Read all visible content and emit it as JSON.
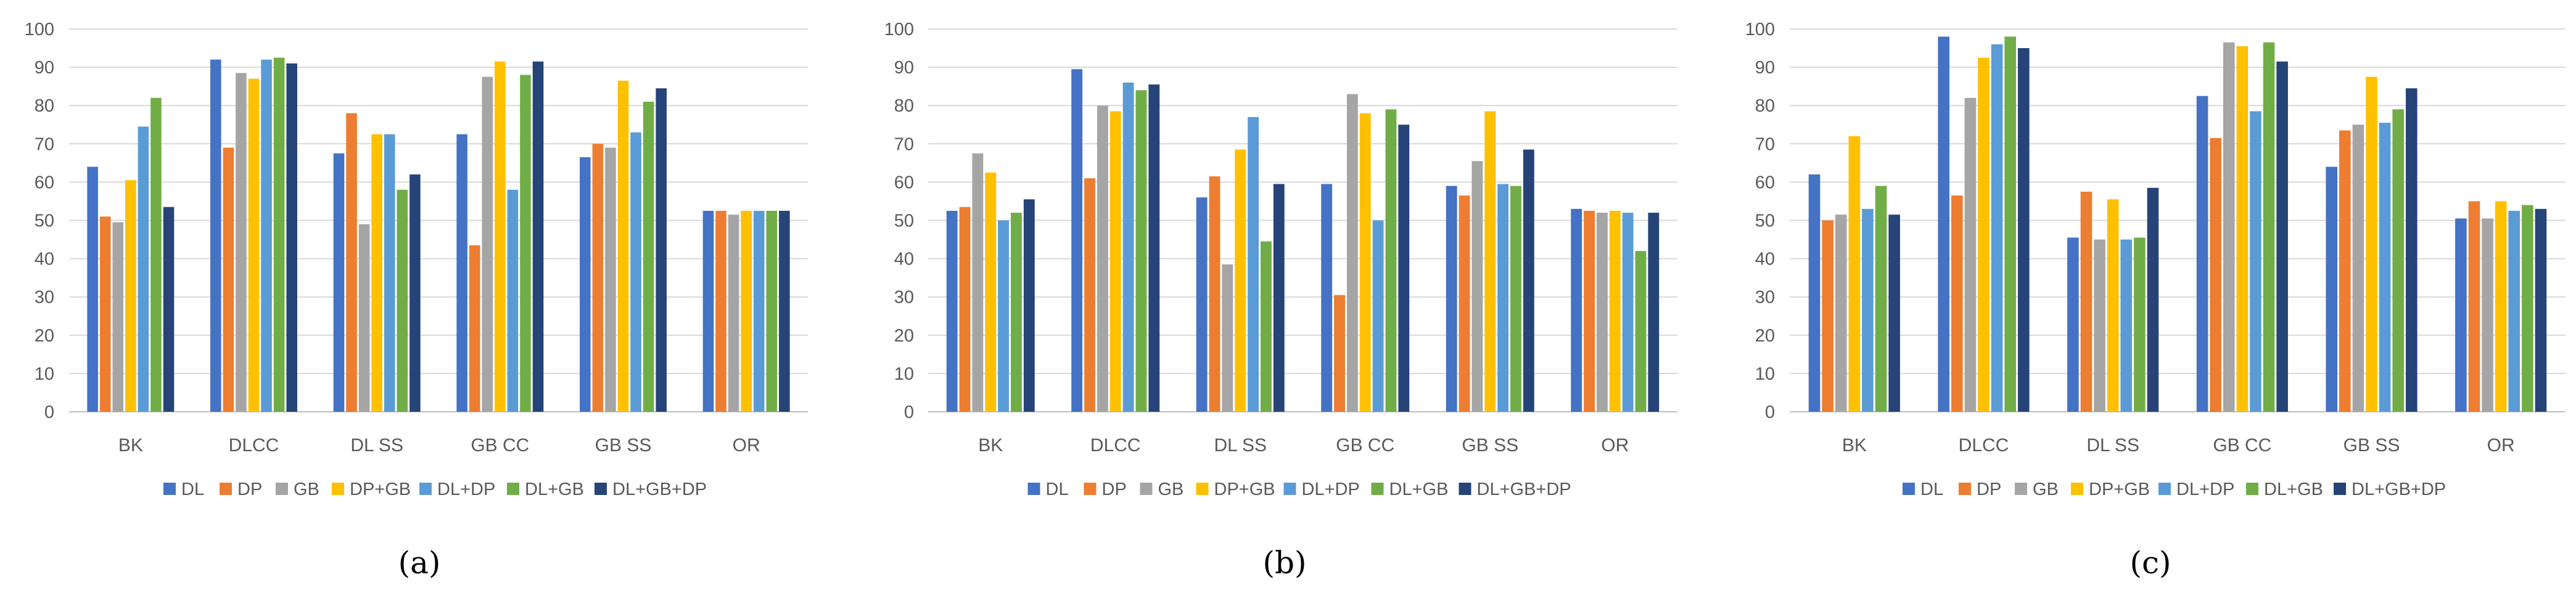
{
  "series_colors": [
    "#4472C4",
    "#ED7D31",
    "#A5A5A5",
    "#FFC000",
    "#5B9BD5",
    "#70AD47",
    "#264478"
  ],
  "chart_data": [
    {
      "type": "bar",
      "caption": "(a)",
      "title": "",
      "xlabel": "",
      "ylabel": "",
      "ylim": [
        0,
        100
      ],
      "yticks": [
        "0",
        "10",
        "20",
        "30",
        "40",
        "50",
        "60",
        "70",
        "80",
        "90",
        "100"
      ],
      "grid": true,
      "legend": "bottom",
      "categories": [
        "BK",
        "DLCC",
        "DL SS",
        "GB CC",
        "GB SS",
        "OR"
      ],
      "series": [
        {
          "name": "DL",
          "values": [
            64,
            92,
            67.5,
            72.5,
            66.5,
            52.5
          ]
        },
        {
          "name": "DP",
          "values": [
            51,
            69,
            78,
            43.5,
            70,
            52.5
          ]
        },
        {
          "name": "GB",
          "values": [
            49.5,
            88.5,
            49,
            87.5,
            69,
            51.5
          ]
        },
        {
          "name": "DP+GB",
          "values": [
            60.5,
            87,
            72.5,
            91.5,
            86.5,
            52.5
          ]
        },
        {
          "name": "DL+DP",
          "values": [
            74.5,
            92,
            72.5,
            58,
            73,
            52.5
          ]
        },
        {
          "name": "DL+GB",
          "values": [
            82,
            92.5,
            58,
            88,
            81,
            52.5
          ]
        },
        {
          "name": "DL+GB+DP",
          "values": [
            53.5,
            91,
            62,
            91.5,
            84.5,
            52.5
          ]
        }
      ]
    },
    {
      "type": "bar",
      "caption": "(b)",
      "title": "",
      "xlabel": "",
      "ylabel": "",
      "ylim": [
        0,
        100
      ],
      "yticks": [
        "0",
        "10",
        "20",
        "30",
        "40",
        "50",
        "60",
        "70",
        "80",
        "90",
        "100"
      ],
      "grid": true,
      "legend": "bottom",
      "categories": [
        "BK",
        "DLCC",
        "DL SS",
        "GB CC",
        "GB SS",
        "OR"
      ],
      "series": [
        {
          "name": "DL",
          "values": [
            52.5,
            89.5,
            56,
            59.5,
            59,
            53
          ]
        },
        {
          "name": "DP",
          "values": [
            53.5,
            61,
            61.5,
            30.5,
            56.5,
            52.5
          ]
        },
        {
          "name": "GB",
          "values": [
            67.5,
            80,
            38.5,
            83,
            65.5,
            52
          ]
        },
        {
          "name": "DP+GB",
          "values": [
            62.5,
            78.5,
            68.5,
            78,
            78.5,
            52.5
          ]
        },
        {
          "name": "DL+DP",
          "values": [
            50,
            86,
            77,
            50,
            59.5,
            52
          ]
        },
        {
          "name": "DL+GB",
          "values": [
            52,
            84,
            44.5,
            79,
            59,
            42
          ]
        },
        {
          "name": "DL+GB+DP",
          "values": [
            55.5,
            85.5,
            59.5,
            75,
            68.5,
            52
          ]
        }
      ]
    },
    {
      "type": "bar",
      "caption": "(c)",
      "title": "",
      "xlabel": "",
      "ylabel": "",
      "ylim": [
        0,
        100
      ],
      "yticks": [
        "0",
        "10",
        "20",
        "30",
        "40",
        "50",
        "60",
        "70",
        "80",
        "90",
        "100"
      ],
      "grid": true,
      "legend": "bottom",
      "categories": [
        "BK",
        "DLCC",
        "DL SS",
        "GB CC",
        "GB SS",
        "OR"
      ],
      "series": [
        {
          "name": "DL",
          "values": [
            62,
            98,
            45.5,
            82.5,
            64,
            50.5
          ]
        },
        {
          "name": "DP",
          "values": [
            50,
            56.5,
            57.5,
            71.5,
            73.5,
            55
          ]
        },
        {
          "name": "GB",
          "values": [
            51.5,
            82,
            45,
            96.5,
            75,
            50.5
          ]
        },
        {
          "name": "DP+GB",
          "values": [
            72,
            92.5,
            55.5,
            95.5,
            87.5,
            55
          ]
        },
        {
          "name": "DL+DP",
          "values": [
            53,
            96,
            45,
            78.5,
            75.5,
            52.5
          ]
        },
        {
          "name": "DL+GB",
          "values": [
            59,
            98,
            45.5,
            96.5,
            79,
            54
          ]
        },
        {
          "name": "DL+GB+DP",
          "values": [
            51.5,
            95,
            58.5,
            91.5,
            84.5,
            53
          ]
        }
      ]
    }
  ]
}
